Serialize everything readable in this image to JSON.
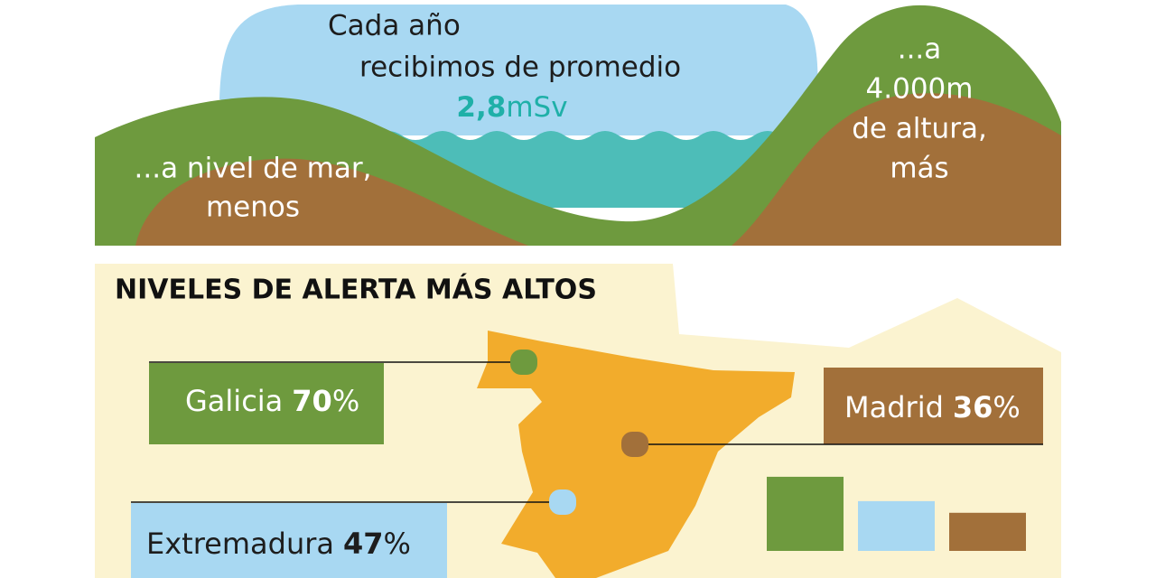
{
  "top": {
    "lines": [
      "Cada año",
      "recibimos de promedio"
    ],
    "dose": {
      "value": "2,8",
      "unit": "mSv"
    },
    "sea_level": [
      "...a nivel de mar,",
      "menos"
    ],
    "altitude": [
      "...a",
      "4.000m",
      "de altura,",
      "más"
    ]
  },
  "section": {
    "title": "NIVELES DE ALERTA MÁS ALTOS",
    "regions": [
      {
        "name": "Galicia",
        "value": 70,
        "unit": "%",
        "color": "#6e9a3e"
      },
      {
        "name": "Extremadura",
        "value": 47,
        "unit": "%",
        "color": "#a8d8f2"
      },
      {
        "name": "Madrid",
        "value": 36,
        "unit": "%",
        "color": "#a2703a"
      }
    ]
  }
}
